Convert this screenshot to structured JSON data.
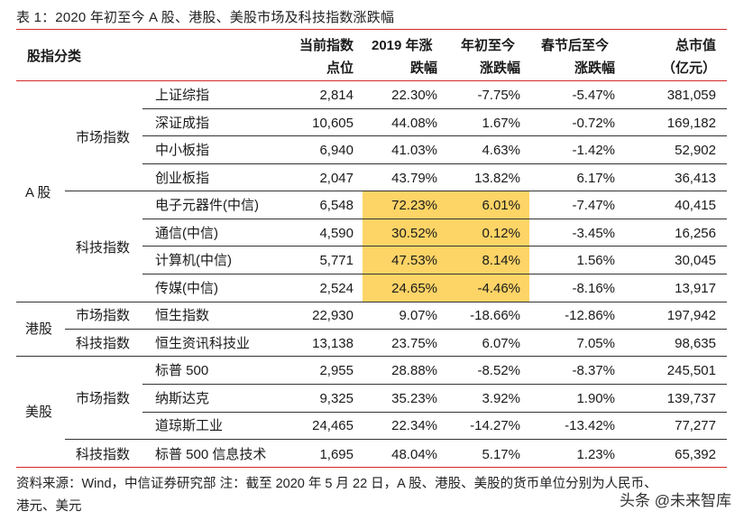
{
  "caption": "表 1：2020 年初至今 A 股、港股、美股市场及科技指数涨跌幅",
  "header": {
    "category": "股指分类",
    "current_index_l1": "当前指数",
    "current_index_l2": "点位",
    "chg2019_l1": "2019 年涨",
    "chg2019_l2": "跌幅",
    "ytd_l1": "年初至今",
    "ytd_l2": "涨跌幅",
    "post_festival_l1": "春节后至今",
    "post_festival_l2": "涨跌幅",
    "mktcap_l1": "总市值",
    "mktcap_l2": "（亿元）"
  },
  "groups": {
    "a_share": "A 股",
    "hk": "港股",
    "us": "美股"
  },
  "subgroups": {
    "a_market": "市场指数",
    "a_tech": "科技指数",
    "hk_market": "市场指数",
    "hk_tech": "科技指数",
    "us_market": "市场指数",
    "us_tech": "科技指数"
  },
  "rows": [
    {
      "name": "上证综指",
      "current": "2,814",
      "chg2019": "22.30%",
      "ytd": "-7.75%",
      "post": "-5.47%",
      "mktcap": "381,059"
    },
    {
      "name": "深证成指",
      "current": "10,605",
      "chg2019": "44.08%",
      "ytd": "1.67%",
      "post": "-0.72%",
      "mktcap": "169,182"
    },
    {
      "name": "中小板指",
      "current": "6,940",
      "chg2019": "41.03%",
      "ytd": "4.63%",
      "post": "-1.42%",
      "mktcap": "52,902"
    },
    {
      "name": "创业板指",
      "current": "2,047",
      "chg2019": "43.79%",
      "ytd": "13.82%",
      "post": "6.17%",
      "mktcap": "36,413"
    },
    {
      "name": "电子元器件(中信)",
      "current": "6,548",
      "chg2019": "72.23%",
      "ytd": "6.01%",
      "post": "-7.47%",
      "mktcap": "40,415"
    },
    {
      "name": "通信(中信)",
      "current": "4,590",
      "chg2019": "30.52%",
      "ytd": "0.12%",
      "post": "-3.45%",
      "mktcap": "16,256"
    },
    {
      "name": "计算机(中信)",
      "current": "5,771",
      "chg2019": "47.53%",
      "ytd": "8.14%",
      "post": "1.56%",
      "mktcap": "30,045"
    },
    {
      "name": "传媒(中信)",
      "current": "2,524",
      "chg2019": "24.65%",
      "ytd": "-4.46%",
      "post": "-8.16%",
      "mktcap": "13,917"
    },
    {
      "name": "恒生指数",
      "current": "22,930",
      "chg2019": "9.07%",
      "ytd": "-18.66%",
      "post": "-12.86%",
      "mktcap": "197,942"
    },
    {
      "name": "恒生资讯科技业",
      "current": "13,138",
      "chg2019": "23.75%",
      "ytd": "6.07%",
      "post": "7.05%",
      "mktcap": "98,635"
    },
    {
      "name": "标普 500",
      "current": "2,955",
      "chg2019": "28.88%",
      "ytd": "-8.52%",
      "post": "-8.37%",
      "mktcap": "245,501"
    },
    {
      "name": "纳斯达克",
      "current": "9,325",
      "chg2019": "35.23%",
      "ytd": "3.92%",
      "post": "1.90%",
      "mktcap": "139,737"
    },
    {
      "name": "道琼斯工业",
      "current": "24,465",
      "chg2019": "22.34%",
      "ytd": "-14.27%",
      "post": "-13.42%",
      "mktcap": "77,277"
    },
    {
      "name": "标普 500 信息技术",
      "current": "1,695",
      "chg2019": "48.04%",
      "ytd": "5.17%",
      "post": "1.23%",
      "mktcap": "65,392"
    }
  ],
  "highlight_color": "#fdd466",
  "accent_line_color": "#d42828",
  "footer": {
    "line1": "资料来源：Wind，中信证券研究部 注：截至 2020 年 5 月 22 日，A 股、港股、美股的货币单位分别为人民币、",
    "line2": "港元、美元"
  },
  "watermark": "头条 @未来智库"
}
